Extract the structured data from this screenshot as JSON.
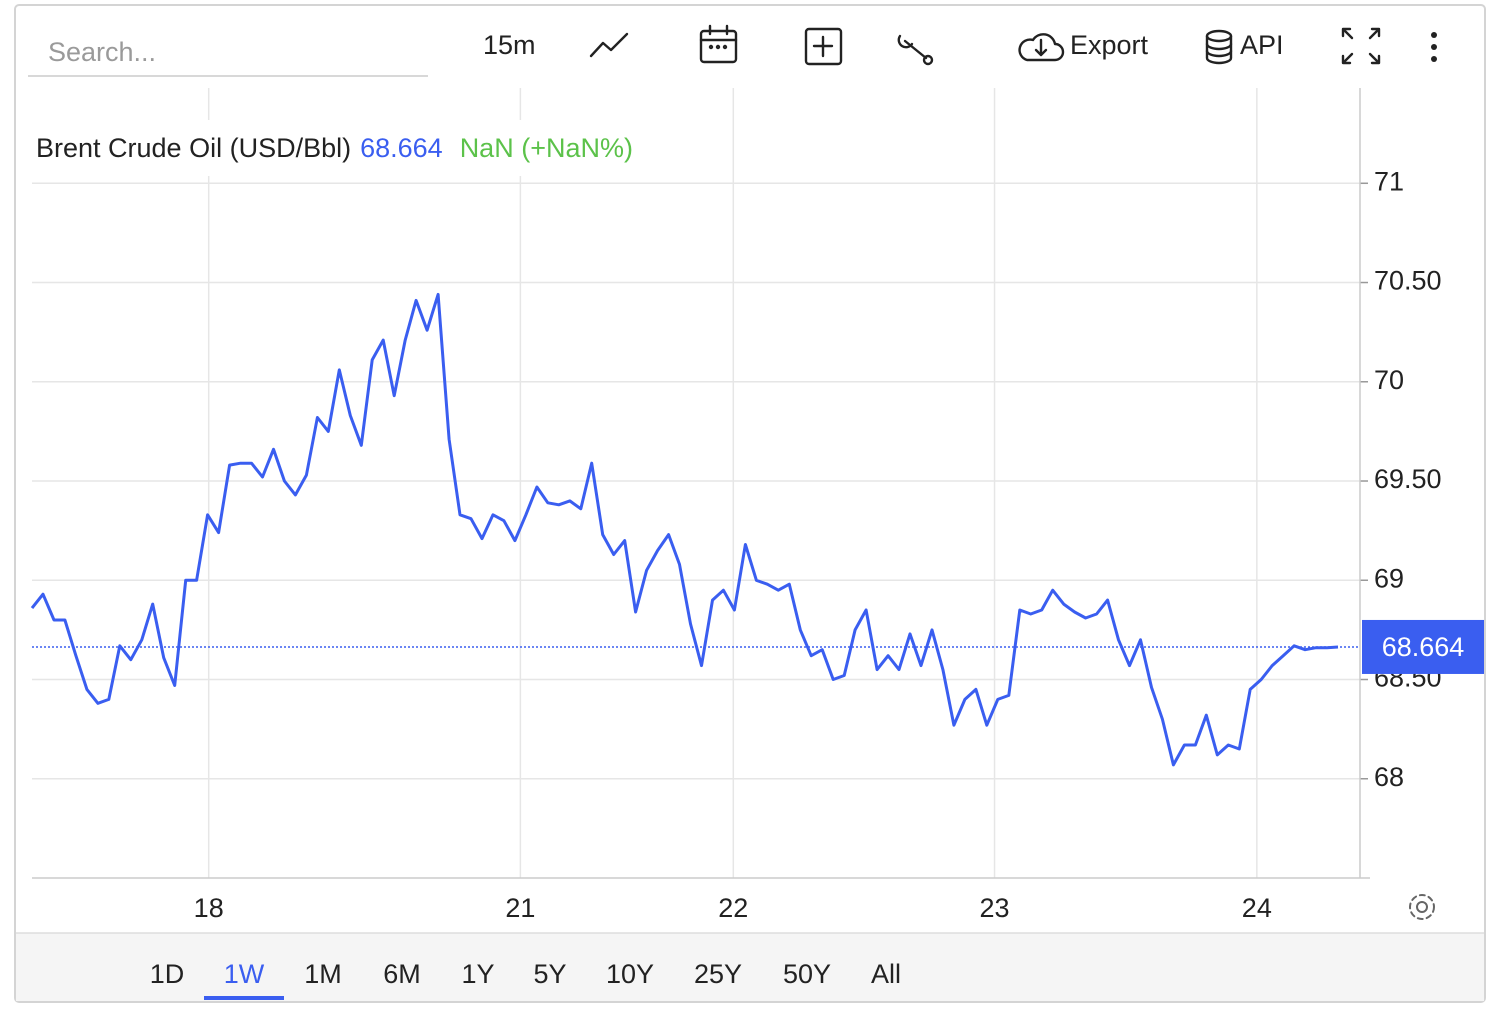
{
  "toolbar": {
    "search_placeholder": "Search...",
    "interval": "15m",
    "export": "Export",
    "api": "API"
  },
  "ranges": [
    "1D",
    "1W",
    "1M",
    "6M",
    "1Y",
    "5Y",
    "10Y",
    "25Y",
    "50Y",
    "All"
  ],
  "active_range": 1,
  "chart_data": {
    "type": "line",
    "change_label": "NaN (+NaN%)",
    "x": [
      0,
      1,
      2,
      3,
      4,
      5,
      6,
      7,
      8,
      9,
      10,
      11,
      12,
      13,
      14,
      15,
      16,
      17,
      18,
      19,
      20,
      21,
      22,
      23,
      24,
      25,
      26,
      27,
      28,
      29,
      30,
      31,
      32,
      33,
      34,
      35,
      36,
      37,
      38,
      39,
      40,
      41,
      42,
      43,
      44,
      45,
      46,
      47,
      48,
      49,
      50,
      51,
      52,
      53,
      54,
      55,
      56,
      57,
      58,
      59,
      60,
      61,
      62,
      63,
      64,
      65,
      66,
      67,
      68,
      69,
      70,
      71,
      72,
      73,
      74,
      75,
      76,
      77,
      78,
      79,
      80,
      81,
      82,
      83,
      84,
      85,
      86,
      87,
      88,
      89,
      90,
      91,
      92,
      93,
      94,
      95,
      96,
      97,
      98,
      99,
      100,
      101,
      102,
      103,
      104,
      105,
      106,
      107,
      108,
      109,
      110,
      111,
      112,
      113,
      114,
      115,
      116,
      117,
      118,
      119
    ],
    "series": [
      {
        "name": "Brent Crude Oil (USD/Bbl)",
        "color": "#3a5ef0",
        "values": [
          68.86,
          68.93,
          68.8,
          68.8,
          68.62,
          68.45,
          68.38,
          68.4,
          68.67,
          68.6,
          68.7,
          68.88,
          68.61,
          68.47,
          69.0,
          69.0,
          69.33,
          69.24,
          69.58,
          69.59,
          69.59,
          69.52,
          69.66,
          69.5,
          69.43,
          69.53,
          69.82,
          69.75,
          70.06,
          69.83,
          69.68,
          70.11,
          70.21,
          69.93,
          70.21,
          70.41,
          70.26,
          70.44,
          69.71,
          69.33,
          69.31,
          69.21,
          69.33,
          69.3,
          69.2,
          69.33,
          69.47,
          69.39,
          69.38,
          69.4,
          69.36,
          69.59,
          69.23,
          69.13,
          69.2,
          68.84,
          69.05,
          69.15,
          69.23,
          69.08,
          68.78,
          68.57,
          68.9,
          68.95,
          68.85,
          69.18,
          69.0,
          68.98,
          68.95,
          68.98,
          68.75,
          68.62,
          68.65,
          68.5,
          68.52,
          68.75,
          68.85,
          68.55,
          68.62,
          68.55,
          68.73,
          68.57,
          68.75,
          68.55,
          68.27,
          68.4,
          68.45,
          68.27,
          68.4,
          68.42,
          68.85,
          68.83,
          68.85,
          68.95,
          68.88,
          68.84,
          68.81,
          68.83,
          68.9,
          68.7,
          68.57,
          68.7,
          68.46,
          68.3,
          68.07,
          68.17,
          68.17,
          68.32,
          68.12,
          68.17,
          68.15,
          68.45,
          68.5,
          68.57,
          68.62,
          68.67,
          68.65,
          68.66,
          68.66,
          68.664
        ]
      }
    ],
    "xlim": [
      0,
      121
    ],
    "xticks": [
      {
        "value": 16.1,
        "label": "18"
      },
      {
        "value": 44.5,
        "label": "21"
      },
      {
        "value": 63.9,
        "label": "22"
      },
      {
        "value": 87.7,
        "label": "23"
      },
      {
        "value": 111.6,
        "label": "24"
      }
    ],
    "ylim": [
      67.5,
      71.48
    ],
    "yticks": [
      68,
      {
        "value": 68.5,
        "label": "68.50"
      },
      69,
      {
        "value": 69.5,
        "label": "69.50"
      },
      70,
      {
        "value": 70.5,
        "label": "70.50"
      },
      71
    ],
    "grid": true,
    "change_color": "#5cc24a"
  }
}
